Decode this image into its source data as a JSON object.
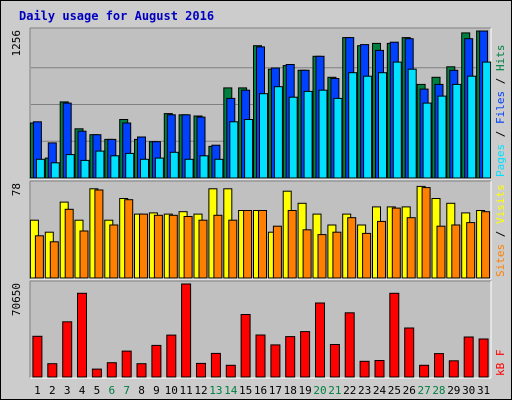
{
  "chart_data": {
    "type": "bar",
    "title": "Daily usage for August 2016",
    "categories": [
      "1",
      "2",
      "3",
      "4",
      "5",
      "6",
      "7",
      "8",
      "9",
      "10",
      "11",
      "12",
      "13",
      "14",
      "15",
      "16",
      "17",
      "18",
      "19",
      "20",
      "21",
      "22",
      "23",
      "24",
      "25",
      "26",
      "27",
      "28",
      "29",
      "30",
      "31"
    ],
    "weekend_days": [
      "6",
      "7",
      "13",
      "14",
      "20",
      "21",
      "27",
      "28"
    ],
    "panels": [
      {
        "max_label": "1256",
        "ylim": [
          0,
          1256
        ],
        "legend": [
          "Pages",
          "Files",
          "Hits"
        ],
        "series": [
          {
            "name": "Hits",
            "color": "#008040",
            "values": [
              470,
              170,
              650,
              420,
              370,
              330,
              500,
              330,
              310,
              550,
              540,
              530,
              270,
              770,
              770,
              1130,
              930,
              960,
              920,
              1040,
              860,
              1200,
              1130,
              1150,
              1150,
              1200,
              800,
              860,
              950,
              1240,
              1256
            ]
          },
          {
            "name": "Files",
            "color": "#0040ff",
            "values": [
              480,
              300,
              640,
              400,
              370,
              330,
              470,
              350,
              310,
              540,
              540,
              520,
              280,
              680,
              750,
              1120,
              940,
              970,
              920,
              1040,
              850,
              1200,
              1140,
              1090,
              1160,
              1190,
              760,
              800,
              920,
              1190,
              1256
            ]
          },
          {
            "name": "Pages",
            "color": "#00e0ff",
            "values": [
              160,
              130,
              200,
              150,
              230,
              190,
              210,
              160,
              170,
              220,
              160,
              190,
              160,
              480,
              500,
              720,
              780,
              690,
              740,
              750,
              680,
              900,
              870,
              900,
              990,
              930,
              640,
              700,
              800,
              870,
              990
            ]
          }
        ]
      },
      {
        "max_label": "78",
        "ylim": [
          0,
          78
        ],
        "legend": [
          "Sites",
          "Visits"
        ],
        "series": [
          {
            "name": "Visits",
            "color": "#ffff00",
            "values": [
              48,
              38,
              63,
              48,
              74,
              48,
              66,
              53,
              54,
              53,
              55,
              53,
              74,
              74,
              56,
              56,
              38,
              72,
              62,
              53,
              44,
              53,
              44,
              59,
              59,
              59,
              76,
              66,
              62,
              54,
              56
            ]
          },
          {
            "name": "Sites",
            "color": "#ff8000",
            "values": [
              35,
              30,
              57,
              39,
              73,
              44,
              65,
              53,
              52,
              52,
              51,
              48,
              52,
              48,
              56,
              56,
              43,
              56,
              40,
              36,
              38,
              50,
              37,
              47,
              58,
              50,
              75,
              43,
              44,
              46,
              55
            ]
          }
        ]
      },
      {
        "max_label": "70650",
        "ylim": [
          0,
          70650
        ],
        "legend": [
          "KBytes"
        ],
        "legend_text": "kB F",
        "series": [
          {
            "name": "KBytes",
            "color": "#ff0000",
            "values": [
              30900,
              10100,
              41900,
              63600,
              6000,
              10900,
              19700,
              10100,
              24000,
              31800,
              70650,
              10300,
              17900,
              8900,
              47500,
              31900,
              24400,
              30700,
              34500,
              56200,
              24700,
              48800,
              11900,
              12500,
              63600,
              37200,
              8900,
              17800,
              12300,
              30400,
              28900
            ]
          }
        ]
      }
    ]
  }
}
